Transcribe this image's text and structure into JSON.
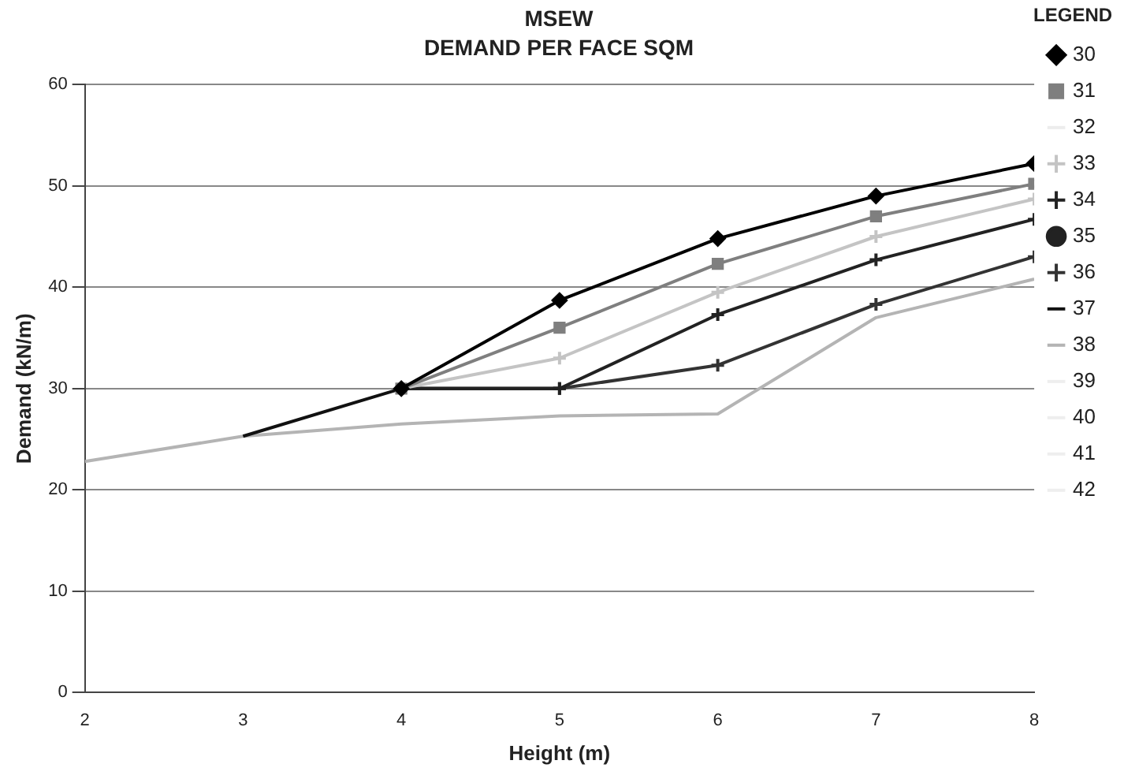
{
  "chart_data": {
    "type": "line",
    "title": "MSEW",
    "subtitle": "DEMAND PER FACE SQM",
    "xlabel": "Height (m)",
    "ylabel": "Demand (kN/m)",
    "legend_title": "LEGEND",
    "x": [
      2,
      3,
      4,
      5,
      6,
      7,
      8
    ],
    "xlim": [
      2,
      8
    ],
    "xticks": [
      2,
      3,
      4,
      5,
      6,
      7,
      8
    ],
    "ylim": [
      0,
      60
    ],
    "yticks": [
      0,
      10,
      20,
      30,
      40,
      50,
      60
    ],
    "grid": "y",
    "legend": "right",
    "series": [
      {
        "name": "30",
        "color": "#000000",
        "marker": "diamond",
        "values": [
          null,
          null,
          30,
          38.7,
          44.8,
          49,
          52.2
        ]
      },
      {
        "name": "31",
        "color": "#7f7f7f",
        "marker": "square",
        "values": [
          null,
          null,
          30,
          36,
          42.3,
          47,
          50.2
        ]
      },
      {
        "name": "32",
        "color": "#ececec",
        "marker": "none",
        "values": [
          null,
          null,
          null,
          null,
          null,
          null,
          null
        ]
      },
      {
        "name": "33",
        "color": "#c4c4c4",
        "marker": "cross",
        "values": [
          null,
          null,
          30,
          33,
          39.5,
          45,
          48.7
        ]
      },
      {
        "name": "34",
        "color": "#222222",
        "marker": "cross",
        "values": [
          null,
          null,
          30,
          30,
          37.3,
          42.7,
          46.7
        ]
      },
      {
        "name": "35",
        "color": "#222222",
        "marker": "circle",
        "values": [
          null,
          null,
          null,
          null,
          null,
          null,
          null
        ]
      },
      {
        "name": "36",
        "color": "#333333",
        "marker": "cross",
        "values": [
          null,
          null,
          30,
          30,
          32.3,
          38.3,
          43
        ]
      },
      {
        "name": "37",
        "color": "#111111",
        "marker": "none",
        "values": [
          null,
          25.3,
          30,
          30,
          null,
          null,
          null
        ]
      },
      {
        "name": "38",
        "color": "#b4b4b4",
        "marker": "none",
        "values": [
          22.8,
          25.3,
          26.5,
          27.3,
          27.5,
          37,
          40.8
        ]
      },
      {
        "name": "39",
        "color": "#eeeeee",
        "marker": "none",
        "values": [
          null,
          null,
          null,
          null,
          null,
          null,
          null
        ]
      },
      {
        "name": "40",
        "color": "#eeeeee",
        "marker": "none",
        "values": [
          null,
          null,
          null,
          null,
          null,
          null,
          null
        ]
      },
      {
        "name": "41",
        "color": "#eeeeee",
        "marker": "none",
        "values": [
          null,
          null,
          null,
          null,
          null,
          null,
          null
        ]
      },
      {
        "name": "42",
        "color": "#eeeeee",
        "marker": "none",
        "values": [
          null,
          null,
          null,
          null,
          null,
          null,
          null
        ]
      }
    ]
  }
}
